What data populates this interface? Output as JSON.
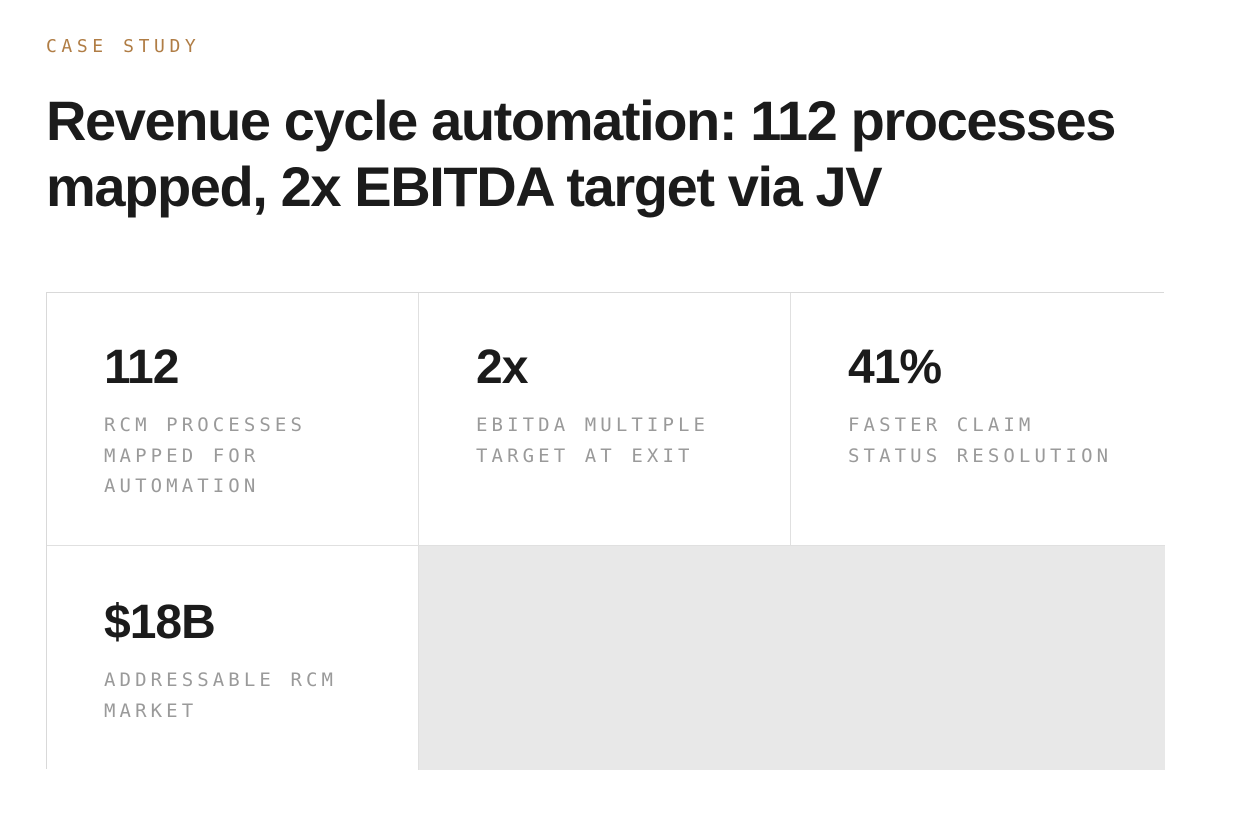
{
  "eyebrow": "CASE STUDY",
  "headline": "Revenue cycle automation: 112 processes mapped, 2x EBITDA target via JV",
  "stats": [
    {
      "value": "112",
      "label": "RCM PROCESSES MAPPED FOR AUTOMATION"
    },
    {
      "value": "2x",
      "label": "EBITDA MULTIPLE TARGET AT EXIT"
    },
    {
      "value": "41%",
      "label": "FASTER CLAIM STATUS RESOLUTION"
    },
    {
      "value": "$18B",
      "label": "ADDRESSABLE RCM MARKET"
    }
  ],
  "colors": {
    "accent": "#b07d45",
    "text": "#1b1b1b",
    "muted": "#9a9a9a",
    "border": "#d9d9d9",
    "empty_fill": "#e8e8e8"
  }
}
